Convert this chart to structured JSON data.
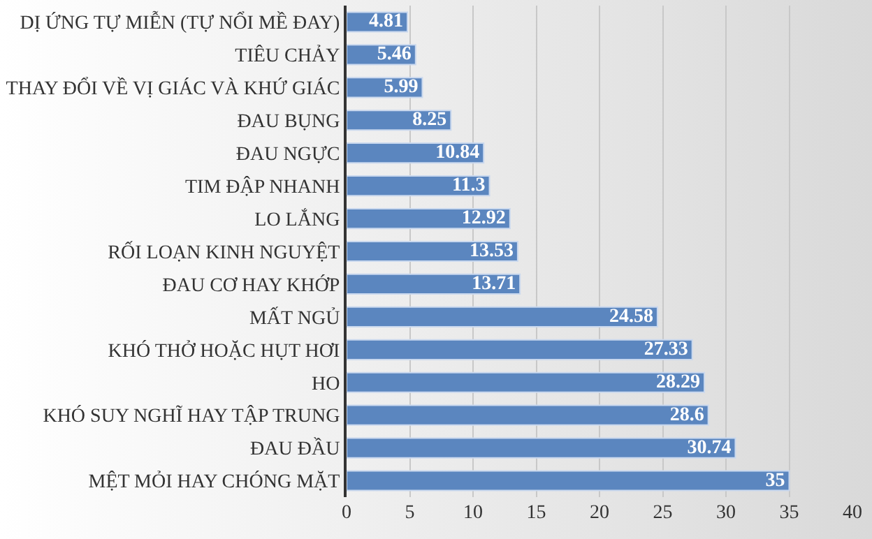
{
  "chart_data": {
    "type": "bar",
    "orientation": "horizontal",
    "categories": [
      "DỊ ỨNG TỰ MIỄN (TỰ NỔI MỀ ĐAY)",
      "TIÊU CHẢY",
      "THAY ĐỔI VỀ VỊ GIÁC VÀ KHỨ GIÁC",
      "ĐAU BỤNG",
      "ĐAU NGỰC",
      "TIM ĐẬP NHANH",
      "LO LẮNG",
      "RỐI LOẠN KINH NGUYỆT",
      "ĐAU CƠ HAY KHỚP",
      "MẤT NGỦ",
      "KHÓ THỞ HOẶC HỤT HƠI",
      "HO",
      "KHÓ SUY NGHĨ HAY TẬP TRUNG",
      "ĐAU ĐẦU",
      "MỆT MỎI HAY CHÓNG MẶT"
    ],
    "values": [
      4.81,
      5.46,
      5.99,
      8.25,
      10.84,
      11.3,
      12.92,
      13.53,
      13.71,
      24.58,
      27.33,
      28.29,
      28.6,
      30.74,
      35
    ],
    "color": "#5b86bf",
    "xlim": [
      0,
      40
    ],
    "xticks": [
      0,
      5,
      10,
      15,
      20,
      25,
      30,
      35,
      40
    ],
    "grid": "x",
    "data_labels": true
  }
}
